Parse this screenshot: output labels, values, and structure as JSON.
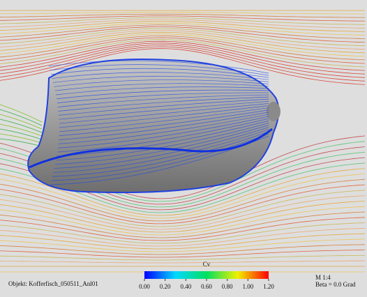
{
  "object_label": "Objekt: Kofferfisch_050511_Anl01",
  "colorbar": {
    "title": "Cv",
    "range": [
      0,
      1.2
    ],
    "colors": [
      "#0000ff",
      "#00d8ff",
      "#00e060",
      "#f0f000",
      "#ff0000"
    ],
    "ticks": [
      {
        "value": 0,
        "label": "0.00"
      },
      {
        "value": 0.2,
        "label": "0.20"
      },
      {
        "value": 0.4,
        "label": "0.40"
      },
      {
        "value": 0.6,
        "label": "0.60"
      },
      {
        "value": 0.8,
        "label": "0.80"
      },
      {
        "value": 1.0,
        "label": "1.00"
      },
      {
        "value": 1.2,
        "label": "1.20"
      }
    ]
  },
  "scale_label": "M 1:4",
  "angle_label": "Beta = 0.0 Grad"
}
